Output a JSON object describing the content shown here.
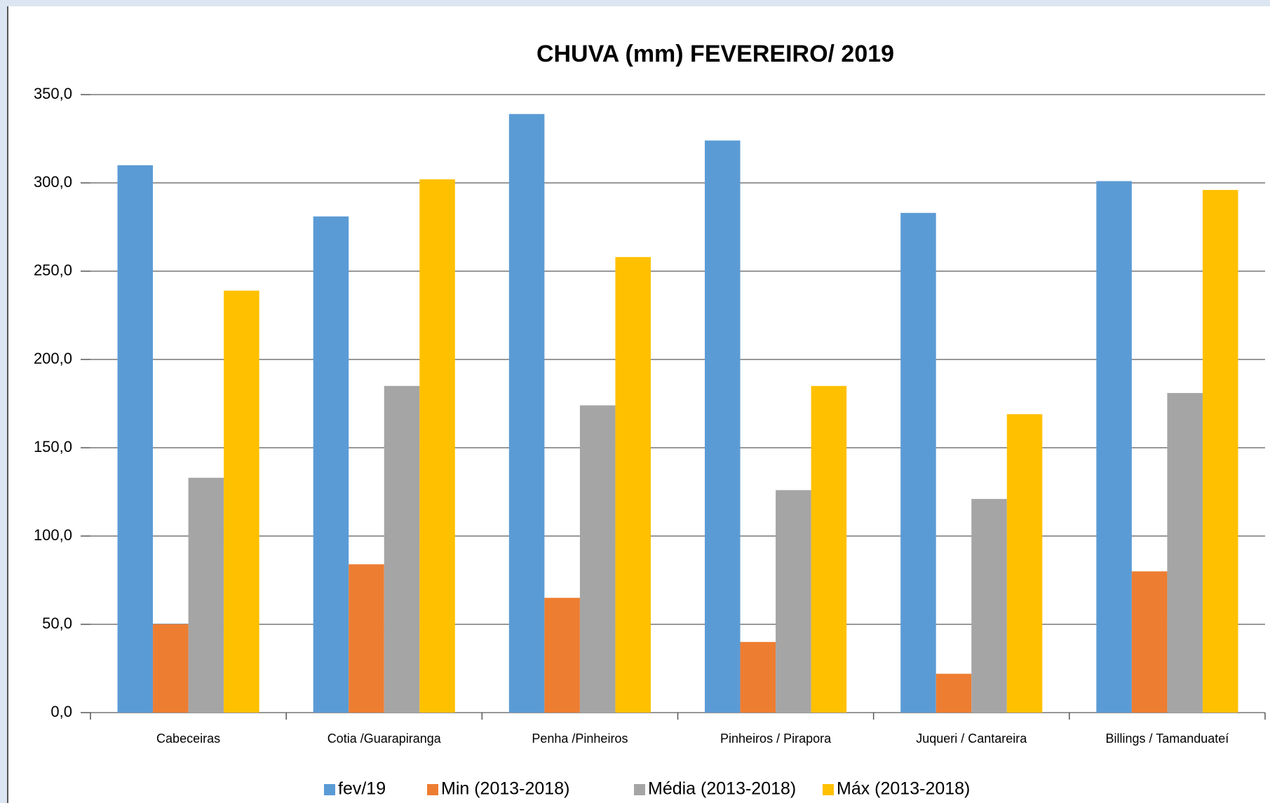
{
  "chart_data": {
    "type": "bar",
    "title": "CHUVA (mm) FEVEREIRO/ 2019",
    "categories": [
      "Cabeceiras",
      "Cotia /Guarapiranga",
      "Penha /Pinheiros",
      "Pinheiros / Pirapora",
      "Juqueri / Cantareira",
      "Billings / Tamanduateí"
    ],
    "series": [
      {
        "name": "fev/19",
        "color": "#5b9bd5",
        "values": [
          310,
          281,
          339,
          324,
          283,
          301
        ]
      },
      {
        "name": "Min (2013-2018)",
        "color": "#ed7d31",
        "values": [
          50,
          84,
          65,
          40,
          22,
          80
        ]
      },
      {
        "name": "Média (2013-2018)",
        "color": "#a5a5a5",
        "values": [
          133,
          185,
          174,
          126,
          121,
          181
        ]
      },
      {
        "name": "Máx  (2013-2018)",
        "color": "#ffc000",
        "values": [
          239,
          302,
          258,
          185,
          169,
          296
        ]
      }
    ],
    "ylim": [
      0,
      350
    ],
    "yticks": [
      {
        "value": 0,
        "label": "0,0"
      },
      {
        "value": 50,
        "label": "50,0"
      },
      {
        "value": 100,
        "label": "100,0"
      },
      {
        "value": 150,
        "label": "150,0"
      },
      {
        "value": 200,
        "label": "200,0"
      },
      {
        "value": 250,
        "label": "250,0"
      },
      {
        "value": 300,
        "label": "300,0"
      },
      {
        "value": 350,
        "label": "350,0"
      }
    ],
    "grid": true,
    "legend": "bottom"
  }
}
